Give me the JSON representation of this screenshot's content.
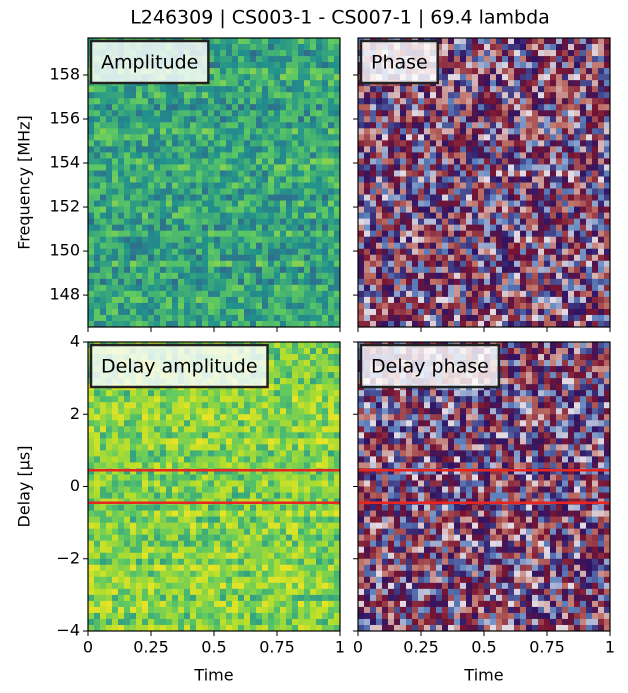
{
  "title": "L246309 | CS003-1 - CS007-1 | 69.4 lambda",
  "chart_data": [
    {
      "type": "heatmap",
      "label": "Amplitude",
      "colormap": "viridis",
      "xlim": [
        0,
        1
      ],
      "ylim": [
        146.55,
        159.68
      ],
      "ylabel": "Frequency [MHz]",
      "yticks": [
        148,
        150,
        152,
        154,
        156,
        158
      ]
    },
    {
      "type": "heatmap",
      "label": "Phase",
      "colormap": "twilight",
      "xlim": [
        0,
        1
      ],
      "ylim": [
        146.55,
        159.68
      ]
    },
    {
      "type": "heatmap",
      "label": "Delay amplitude",
      "colormap": "viridis-bright",
      "xlim": [
        0,
        1
      ],
      "ylim": [
        -4,
        4
      ],
      "ylabel": "Delay [µs]",
      "yticks": [
        {
          "value": -4,
          "label": "−4"
        },
        {
          "value": -2,
          "label": "−2"
        },
        0,
        2,
        4
      ],
      "xlabel": "Time",
      "xticks": [
        0,
        0.25,
        0.5,
        0.75,
        1
      ],
      "hlines": [
        {
          "y": 0.45,
          "color": "#e8251e"
        },
        {
          "y": -0.45,
          "color": "#e8251e"
        }
      ]
    },
    {
      "type": "heatmap",
      "label": "Delay phase",
      "colormap": "twilight",
      "xlim": [
        0,
        1
      ],
      "ylim": [
        -4,
        4
      ],
      "xlabel": "Time",
      "xticks": [
        0,
        0.25,
        0.5,
        0.75,
        1
      ],
      "hlines": [
        {
          "y": 0.45,
          "color": "#e8251e"
        },
        {
          "y": -0.45,
          "color": "#e8251e"
        }
      ]
    }
  ]
}
